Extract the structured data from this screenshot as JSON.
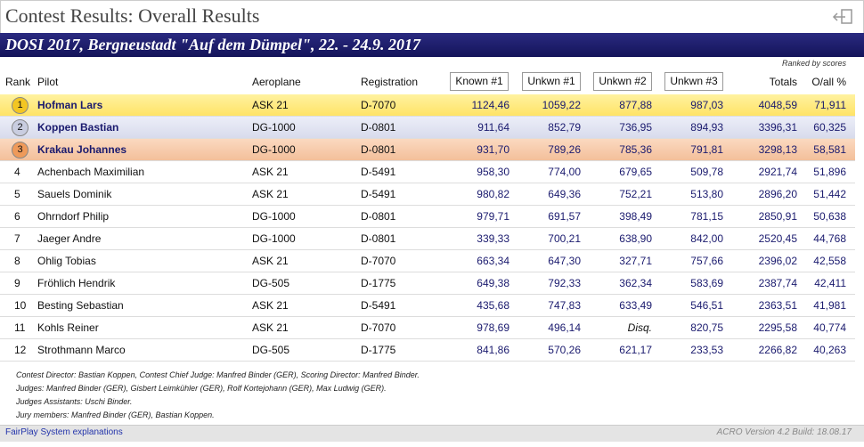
{
  "header": {
    "title": "Contest Results: Overall Results",
    "subtitle": "DOSI 2017, Bergneustadt \"Auf dem Dümpel\", 22. - 24.9. 2017"
  },
  "table": {
    "note": "Ranked by scores",
    "columns": [
      "Rank",
      "Pilot",
      "Aeroplane",
      "Registration",
      "Known #1",
      "Unkwn #1",
      "Unkwn #2",
      "Unkwn #3",
      "Totals",
      "O/all %"
    ],
    "rows": [
      [
        "1",
        "Hofman Lars",
        "ASK 21",
        "D-7070",
        "1124,46",
        "1059,22",
        "877,88",
        "987,03",
        "4048,59",
        "71,911"
      ],
      [
        "2",
        "Koppen Bastian",
        "DG-1000",
        "D-0801",
        "911,64",
        "852,79",
        "736,95",
        "894,93",
        "3396,31",
        "60,325"
      ],
      [
        "3",
        "Krakau Johannes",
        "DG-1000",
        "D-0801",
        "931,70",
        "789,26",
        "785,36",
        "791,81",
        "3298,13",
        "58,581"
      ],
      [
        "4",
        "Achenbach Maximilian",
        "ASK 21",
        "D-5491",
        "958,30",
        "774,00",
        "679,65",
        "509,78",
        "2921,74",
        "51,896"
      ],
      [
        "5",
        "Sauels Dominik",
        "ASK 21",
        "D-5491",
        "980,82",
        "649,36",
        "752,21",
        "513,80",
        "2896,20",
        "51,442"
      ],
      [
        "6",
        "Ohrndorf Philip",
        "DG-1000",
        "D-0801",
        "979,71",
        "691,57",
        "398,49",
        "781,15",
        "2850,91",
        "50,638"
      ],
      [
        "7",
        "Jaeger Andre",
        "DG-1000",
        "D-0801",
        "339,33",
        "700,21",
        "638,90",
        "842,00",
        "2520,45",
        "44,768"
      ],
      [
        "8",
        "Ohlig Tobias",
        "ASK 21",
        "D-7070",
        "663,34",
        "647,30",
        "327,71",
        "757,66",
        "2396,02",
        "42,558"
      ],
      [
        "9",
        "Fröhlich Hendrik",
        "DG-505",
        "D-1775",
        "649,38",
        "792,33",
        "362,34",
        "583,69",
        "2387,74",
        "42,411"
      ],
      [
        "10",
        "Besting Sebastian",
        "ASK 21",
        "D-5491",
        "435,68",
        "747,83",
        "633,49",
        "546,51",
        "2363,51",
        "41,981"
      ],
      [
        "11",
        "Kohls Reiner",
        "ASK 21",
        "D-7070",
        "978,69",
        "496,14",
        "Disq.",
        "820,75",
        "2295,58",
        "40,774"
      ],
      [
        "12",
        "Strothmann Marco",
        "DG-505",
        "D-1775",
        "841,86",
        "570,26",
        "621,17",
        "233,53",
        "2266,82",
        "40,263"
      ]
    ]
  },
  "footer": {
    "lines": [
      "Contest Director: Bastian Koppen, Contest Chief Judge: Manfred Binder (GER), Scoring Director: Manfred Binder.",
      "Judges:  Manfred Binder (GER), Gisbert Leimkühler (GER), Rolf Kortejohann (GER), Max Ludwig (GER).",
      "Judges  Assistants: Uschi Binder.",
      "Jury  members: Manfred Binder (GER), Bastian Koppen."
    ],
    "link": "FairPlay System explanations",
    "version": "ACRO Version 4.2 Build: 18.08.17"
  }
}
